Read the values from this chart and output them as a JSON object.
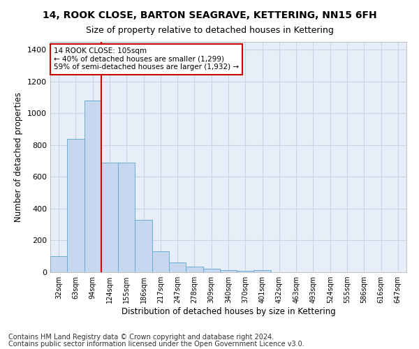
{
  "title1": "14, ROOK CLOSE, BARTON SEAGRAVE, KETTERING, NN15 6FH",
  "title2": "Size of property relative to detached houses in Kettering",
  "xlabel": "Distribution of detached houses by size in Kettering",
  "ylabel": "Number of detached properties",
  "footer1": "Contains HM Land Registry data © Crown copyright and database right 2024.",
  "footer2": "Contains public sector information licensed under the Open Government Licence v3.0.",
  "annotation_line1": "14 ROOK CLOSE: 105sqm",
  "annotation_line2": "← 40% of detached houses are smaller (1,299)",
  "annotation_line3": "59% of semi-detached houses are larger (1,932) →",
  "bar_categories": [
    "32sqm",
    "63sqm",
    "94sqm",
    "124sqm",
    "155sqm",
    "186sqm",
    "217sqm",
    "247sqm",
    "278sqm",
    "309sqm",
    "340sqm",
    "370sqm",
    "401sqm",
    "432sqm",
    "463sqm",
    "493sqm",
    "524sqm",
    "555sqm",
    "586sqm",
    "616sqm",
    "647sqm"
  ],
  "bar_values": [
    100,
    840,
    1080,
    690,
    690,
    330,
    130,
    60,
    35,
    20,
    15,
    8,
    15,
    0,
    0,
    0,
    0,
    0,
    0,
    0,
    0
  ],
  "bar_color": "#c5d8f0",
  "bar_edge_color": "#6aadd5",
  "red_line_x": 2.5,
  "ylim": [
    0,
    1450
  ],
  "yticks": [
    0,
    200,
    400,
    600,
    800,
    1000,
    1200,
    1400
  ],
  "grid_color": "#c8d4e8",
  "background_color": "#e8eef8",
  "annotation_box_color": "#ffffff",
  "annotation_box_edge": "#cc0000",
  "red_line_color": "#cc0000",
  "title1_fontsize": 10,
  "title2_fontsize": 9,
  "xlabel_fontsize": 8.5,
  "ylabel_fontsize": 8.5,
  "footer_fontsize": 7
}
